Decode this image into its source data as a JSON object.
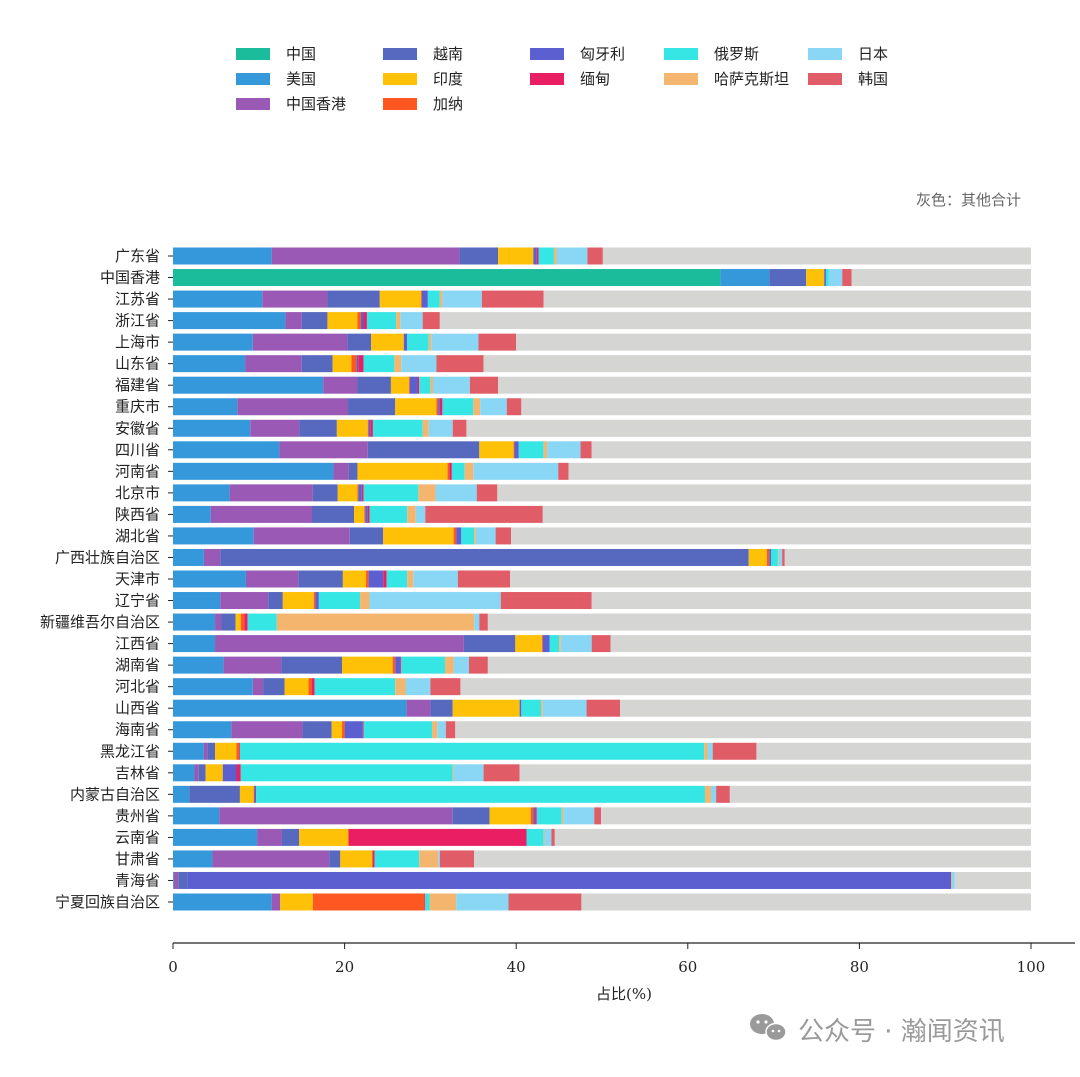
{
  "chart_data": {
    "type": "bar",
    "orientation": "horizontal",
    "stacked": true,
    "title": "",
    "xlabel": "占比(%)",
    "ylabel": "",
    "xlim": [
      0,
      100
    ],
    "xticks": [
      0,
      20,
      40,
      60,
      80,
      100
    ],
    "grid": false,
    "legend_position": "top",
    "annotation": "灰色：其他合计",
    "remainder": {
      "name": "其他",
      "color": "#d5d5d3"
    },
    "categories": [
      "广东省",
      "中国香港",
      "江苏省",
      "浙江省",
      "上海市",
      "山东省",
      "福建省",
      "重庆市",
      "安徽省",
      "四川省",
      "河南省",
      "北京市",
      "陕西省",
      "湖北省",
      "广西壮族自治区",
      "天津市",
      "辽宁省",
      "新疆维吾尔自治区",
      "江西省",
      "湖南省",
      "河北省",
      "山西省",
      "海南省",
      "黑龙江省",
      "吉林省",
      "内蒙古自治区",
      "贵州省",
      "云南省",
      "甘肃省",
      "青海省",
      "宁夏回族自治区"
    ],
    "series": [
      {
        "name": "中国",
        "color": "#1abc9c",
        "values": [
          0,
          63.8,
          0,
          0,
          0,
          0,
          0,
          0,
          0,
          0,
          0,
          0,
          0,
          0,
          0,
          0,
          0,
          0,
          0,
          0,
          0,
          0,
          0,
          0,
          0,
          0,
          0,
          0,
          0,
          0,
          0
        ]
      },
      {
        "name": "美国",
        "color": "#3498db",
        "values": [
          11.5,
          5.7,
          10.4,
          13.1,
          9.3,
          8.4,
          17.5,
          7.5,
          9.0,
          12.4,
          18.7,
          6.6,
          4.4,
          9.4,
          3.6,
          8.5,
          5.5,
          4.9,
          4.9,
          5.9,
          9.3,
          27.2,
          6.8,
          3.6,
          2.5,
          1.9,
          5.4,
          9.8,
          4.6,
          0.1,
          11.5
        ]
      },
      {
        "name": "中国香港",
        "color": "#9b59b6",
        "values": [
          21.9,
          0,
          7.6,
          1.9,
          11.0,
          6.6,
          4.0,
          12.9,
          5.7,
          10.3,
          1.8,
          9.7,
          11.8,
          11.2,
          1.9,
          6.1,
          5.6,
          0.7,
          29.0,
          6.7,
          1.2,
          2.8,
          8.3,
          0.4,
          0.5,
          0,
          27.2,
          2.9,
          13.6,
          0.5,
          1.0
        ]
      },
      {
        "name": "越南",
        "color": "#5669bf",
        "values": [
          4.5,
          4.3,
          6.1,
          3.0,
          2.8,
          3.6,
          3.9,
          5.5,
          4.4,
          13.0,
          1.0,
          2.9,
          4.9,
          3.9,
          61.6,
          5.2,
          1.7,
          1.7,
          6.0,
          7.1,
          2.5,
          2.6,
          3.4,
          0.9,
          0.8,
          5.9,
          4.3,
          2.0,
          1.3,
          1.1,
          0
        ]
      },
      {
        "name": "印度",
        "color": "#ffc107",
        "values": [
          4.1,
          2.1,
          4.8,
          3.5,
          3.8,
          2.2,
          2.1,
          4.8,
          3.6,
          4.0,
          10.5,
          2.3,
          1.2,
          8.2,
          2.1,
          2.7,
          3.6,
          0.6,
          3.1,
          5.9,
          2.8,
          7.8,
          1.2,
          2.5,
          2.0,
          1.6,
          4.8,
          5.7,
          3.7,
          0,
          3.8
        ]
      },
      {
        "name": "加纳",
        "color": "#ff5722",
        "values": [
          0,
          0,
          0.1,
          0.4,
          0,
          0.6,
          0.1,
          0.2,
          0.1,
          0.1,
          0.2,
          0.1,
          0.1,
          0.3,
          0.3,
          0.3,
          0.2,
          0.4,
          0.1,
          0.3,
          0.4,
          0,
          0.3,
          0.3,
          0,
          0.1,
          0.3,
          0.1,
          0.1,
          0,
          13.0
        ]
      },
      {
        "name": "匈牙利",
        "color": "#5b5fcf",
        "values": [
          0.4,
          0.2,
          0.7,
          0.3,
          0.4,
          0.2,
          0.9,
          0.2,
          0.2,
          0.5,
          0,
          0.4,
          0.3,
          0.6,
          0.2,
          1.7,
          0.4,
          0,
          0.8,
          0.6,
          0,
          0.2,
          2.1,
          0,
          1.6,
          0.2,
          0.2,
          0,
          0,
          89.0,
          0
        ]
      },
      {
        "name": "缅甸",
        "color": "#e91e63",
        "values": [
          0.2,
          0,
          0,
          0.4,
          0,
          0.6,
          0.2,
          0.3,
          0.3,
          0,
          0.3,
          0.2,
          0.2,
          0,
          0,
          0.4,
          0,
          0.4,
          0,
          0.1,
          0.3,
          0,
          0.1,
          0.1,
          0.5,
          0,
          0.2,
          20.7,
          0.2,
          0,
          0.1
        ]
      },
      {
        "name": "俄罗斯",
        "color": "#36e6e4",
        "values": [
          1.8,
          0.3,
          1.4,
          3.4,
          2.5,
          3.6,
          1.3,
          3.6,
          5.8,
          2.9,
          1.5,
          6.4,
          4.4,
          1.5,
          0.8,
          2.4,
          4.8,
          3.4,
          1.1,
          5.1,
          9.4,
          2.3,
          8.0,
          54.1,
          24.7,
          52.3,
          2.9,
          2.0,
          5.2,
          0,
          0.5
        ]
      },
      {
        "name": "哈萨克斯坦",
        "color": "#f4b56f",
        "values": [
          0.3,
          0,
          0.3,
          0.5,
          0.3,
          0.8,
          0.3,
          0.8,
          0.7,
          0.4,
          1.0,
          2.0,
          1.0,
          0.2,
          0.1,
          0.7,
          1.1,
          23.0,
          0.2,
          1.0,
          1.2,
          0.2,
          0.6,
          0.4,
          0.1,
          0.7,
          0.2,
          0.1,
          2.2,
          0.1,
          3.1
        ]
      },
      {
        "name": "日本",
        "color": "#89d7f5",
        "values": [
          3.6,
          1.6,
          4.6,
          2.6,
          5.5,
          4.1,
          4.3,
          3.1,
          2.8,
          3.9,
          9.9,
          4.8,
          1.1,
          2.3,
          0.4,
          5.2,
          15.3,
          0.6,
          3.6,
          1.8,
          2.9,
          5.1,
          1.0,
          0.6,
          3.5,
          0.6,
          3.6,
          0.8,
          0.2,
          0.3,
          6.1
        ]
      },
      {
        "name": "韩国",
        "color": "#e05c66",
        "values": [
          1.8,
          1.1,
          7.2,
          2.0,
          4.4,
          5.5,
          3.3,
          1.7,
          1.6,
          1.3,
          1.2,
          2.4,
          13.7,
          1.8,
          0.3,
          6.1,
          10.6,
          1.0,
          2.2,
          2.2,
          3.5,
          3.9,
          1.1,
          5.1,
          4.2,
          1.6,
          0.8,
          0.4,
          4.0,
          0,
          8.5
        ]
      }
    ]
  },
  "watermark": {
    "text": "公众号 · 瀚闻资讯",
    "icon": "wechat-icon"
  }
}
